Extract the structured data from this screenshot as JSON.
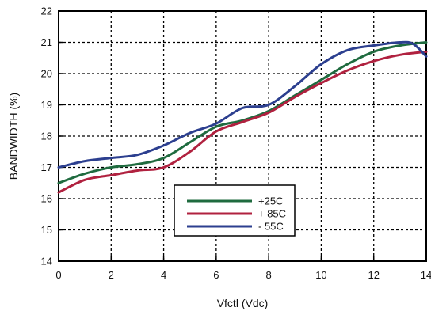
{
  "chart_data": {
    "type": "line",
    "xlabel": "Vfctl (Vdc)",
    "ylabel": "BANDWIDTH (%)",
    "xlim": [
      0,
      14
    ],
    "ylim": [
      14,
      22
    ],
    "x_ticks": [
      "0",
      "2",
      "4",
      "6",
      "8",
      "10",
      "12",
      "14"
    ],
    "y_ticks": [
      "14",
      "15",
      "16",
      "17",
      "18",
      "19",
      "20",
      "21",
      "22"
    ],
    "grid": "dashed",
    "legend_position": "lower-center",
    "series": [
      {
        "name": "+25C",
        "color": "#1f6b3f",
        "points": [
          [
            0,
            16.5
          ],
          [
            1,
            16.8
          ],
          [
            2,
            17.0
          ],
          [
            3,
            17.1
          ],
          [
            4,
            17.3
          ],
          [
            5,
            17.8
          ],
          [
            6,
            18.3
          ],
          [
            7,
            18.5
          ],
          [
            8,
            18.8
          ],
          [
            9,
            19.3
          ],
          [
            10,
            19.8
          ],
          [
            11,
            20.3
          ],
          [
            12,
            20.7
          ],
          [
            13,
            20.9
          ],
          [
            14,
            21.0
          ]
        ]
      },
      {
        "name": "+ 85C",
        "color": "#b0213f",
        "points": [
          [
            0,
            16.2
          ],
          [
            1,
            16.6
          ],
          [
            2,
            16.75
          ],
          [
            3,
            16.9
          ],
          [
            4,
            17.0
          ],
          [
            5,
            17.5
          ],
          [
            6,
            18.15
          ],
          [
            7,
            18.45
          ],
          [
            8,
            18.75
          ],
          [
            9,
            19.25
          ],
          [
            10,
            19.7
          ],
          [
            11,
            20.1
          ],
          [
            12,
            20.4
          ],
          [
            13,
            20.6
          ],
          [
            14,
            20.7
          ]
        ]
      },
      {
        "name": "- 55C",
        "color": "#2c3f8f",
        "points": [
          [
            0,
            17.0
          ],
          [
            1,
            17.2
          ],
          [
            2,
            17.3
          ],
          [
            3,
            17.4
          ],
          [
            4,
            17.7
          ],
          [
            5,
            18.1
          ],
          [
            6,
            18.4
          ],
          [
            7,
            18.9
          ],
          [
            8,
            19.0
          ],
          [
            9,
            19.6
          ],
          [
            10,
            20.3
          ],
          [
            11,
            20.75
          ],
          [
            12,
            20.9
          ],
          [
            13,
            21.0
          ],
          [
            13.5,
            20.95
          ],
          [
            14,
            20.55
          ]
        ]
      }
    ]
  }
}
